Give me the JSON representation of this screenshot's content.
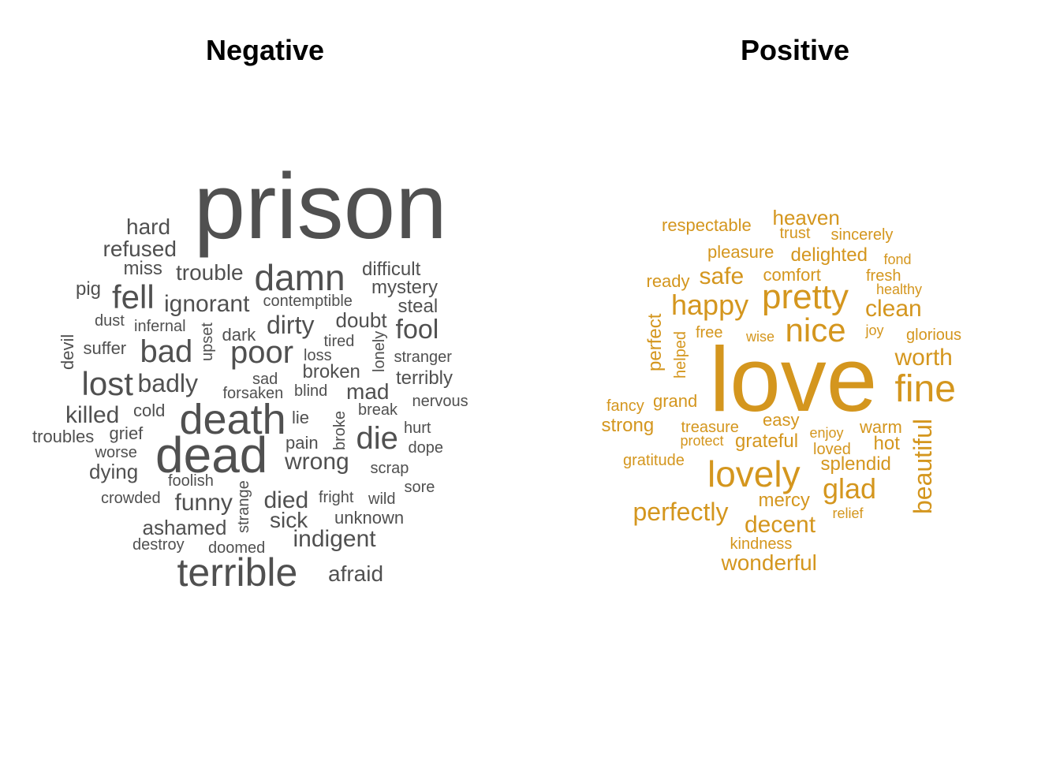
{
  "colors": {
    "negative": "#505050",
    "positive": "#D4961E"
  },
  "panels": [
    {
      "title": "Negative",
      "color": "#505050",
      "words": [
        "prison",
        "hard",
        "refused",
        "miss",
        "trouble",
        "damn",
        "difficult",
        "mystery",
        "pig",
        "fell",
        "ignorant",
        "contemptible",
        "steal",
        "dust",
        "infernal",
        "upset",
        "dark",
        "dirty",
        "doubt",
        "fool",
        "devil",
        "suffer",
        "bad",
        "poor",
        "tired",
        "lonely",
        "loss",
        "stranger",
        "lost",
        "badly",
        "sad",
        "broken",
        "terribly",
        "forsaken",
        "blind",
        "mad",
        "killed",
        "cold",
        "death",
        "lie",
        "broke",
        "break",
        "nervous",
        "troubles",
        "grief",
        "hurt",
        "worse",
        "dead",
        "pain",
        "die",
        "dope",
        "dying",
        "wrong",
        "scrap",
        "foolish",
        "strange",
        "sore",
        "crowded",
        "funny",
        "died",
        "fright",
        "wild",
        "sick",
        "unknown",
        "ashamed",
        "indigent",
        "destroy",
        "doomed",
        "terrible",
        "afraid"
      ]
    },
    {
      "title": "Positive",
      "color": "#D4961E",
      "words": [
        "heaven",
        "respectable",
        "trust",
        "sincerely",
        "pleasure",
        "delighted",
        "fond",
        "ready",
        "safe",
        "comfort",
        "fresh",
        "healthy",
        "pretty",
        "happy",
        "clean",
        "perfect",
        "nice",
        "joy",
        "helped",
        "free",
        "wise",
        "glorious",
        "love",
        "worth",
        "fine",
        "fancy",
        "grand",
        "easy",
        "beautiful",
        "strong",
        "treasure",
        "warm",
        "protect",
        "enjoy",
        "grateful",
        "hot",
        "loved",
        "gratitude",
        "splendid",
        "lovely",
        "glad",
        "mercy",
        "perfectly",
        "relief",
        "decent",
        "kindness",
        "wonderful"
      ]
    }
  ]
}
